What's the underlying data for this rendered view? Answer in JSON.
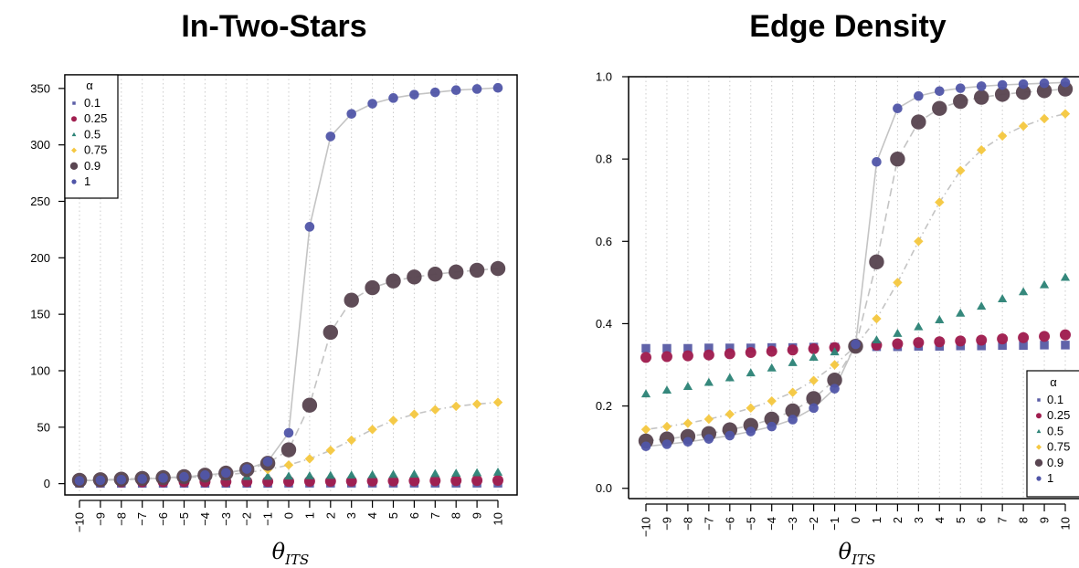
{
  "chart_data": [
    {
      "type": "scatter",
      "title": "In-Two-Stars",
      "xlabel": "θ_ITS",
      "xlabel_main": "θ",
      "xlabel_sub": "ITS",
      "ylabel": "",
      "x": [
        -10,
        -9,
        -8,
        -7,
        -6,
        -5,
        -4,
        -3,
        -2,
        -1,
        0,
        1,
        2,
        3,
        4,
        5,
        6,
        7,
        8,
        9,
        10
      ],
      "x_tick_labels": [
        "−10",
        "−9",
        "−8",
        "−7",
        "−6",
        "−5",
        "−4",
        "−3",
        "−2",
        "−1",
        "0",
        "1",
        "2",
        "3",
        "4",
        "5",
        "6",
        "7",
        "8",
        "9",
        "10"
      ],
      "ylim": [
        -10,
        362
      ],
      "y_ticks": [
        0,
        50,
        100,
        150,
        200,
        250,
        300,
        350
      ],
      "y_tick_labels": [
        "0",
        "50",
        "100",
        "150",
        "200",
        "250",
        "300",
        "350"
      ],
      "grid": "vertical dotted",
      "legend_position": "top-left",
      "legend_title": "α",
      "series": [
        {
          "name": "0.1",
          "color": "#5b5ea6",
          "marker": "square",
          "line": "",
          "values": [
            0.3,
            0.3,
            0.3,
            0.3,
            0.3,
            0.3,
            0.3,
            0.3,
            0.3,
            0.3,
            0.4,
            0.4,
            0.4,
            0.4,
            0.4,
            0.4,
            0.4,
            0.4,
            0.4,
            0.4,
            0.4
          ]
        },
        {
          "name": "0.25",
          "color": "#a01e4f",
          "marker": "circle",
          "line": "",
          "values": [
            1.5,
            1.5,
            1.5,
            1.6,
            1.6,
            1.7,
            1.7,
            1.8,
            1.8,
            1.9,
            2.0,
            2.1,
            2.1,
            2.2,
            2.3,
            2.4,
            2.5,
            2.6,
            2.7,
            2.8,
            2.9
          ]
        },
        {
          "name": "0.5",
          "color": "#2e8478",
          "marker": "triangle",
          "line": "",
          "values": [
            4.5,
            4.7,
            4.9,
            5.1,
            5.3,
            5.5,
            5.7,
            5.9,
            6.1,
            6.3,
            6.5,
            6.8,
            7.1,
            7.4,
            7.7,
            8.0,
            8.3,
            8.7,
            9.1,
            9.5,
            10.0
          ]
        },
        {
          "name": "0.75",
          "color": "#f5c842",
          "marker": "diamond",
          "line": "dotdash",
          "values": [
            2.8,
            3.1,
            3.5,
            4.0,
            4.6,
            5.3,
            6.3,
            7.8,
            9.8,
            12.5,
            16.5,
            22.0,
            29.5,
            38.5,
            48.0,
            56.0,
            61.5,
            65.5,
            68.5,
            70.5,
            72.0
          ]
        },
        {
          "name": "0.9",
          "color": "#5a4652",
          "marker": "circle-large",
          "line": "dashed",
          "values": [
            3.0,
            3.5,
            4.0,
            4.6,
            5.3,
            6.2,
            7.5,
            9.3,
            12.5,
            18.0,
            30.0,
            69.5,
            134.0,
            162.5,
            173.5,
            179.5,
            183.0,
            185.5,
            187.5,
            189.0,
            190.5
          ]
        },
        {
          "name": "1",
          "color": "#5055a8",
          "marker": "circle-small",
          "line": "solid",
          "values": [
            2.5,
            3.0,
            3.5,
            4.2,
            5.0,
            6.0,
            7.5,
            9.5,
            13.0,
            19.5,
            45.0,
            227.5,
            307.5,
            327.5,
            336.5,
            341.5,
            344.5,
            346.5,
            348.5,
            349.5,
            350.5
          ]
        }
      ]
    },
    {
      "type": "scatter",
      "title": "Edge Density",
      "xlabel": "θ_ITS",
      "xlabel_main": "θ",
      "xlabel_sub": "ITS",
      "ylabel": "",
      "x": [
        -10,
        -9,
        -8,
        -7,
        -6,
        -5,
        -4,
        -3,
        -2,
        -1,
        0,
        1,
        2,
        3,
        4,
        5,
        6,
        7,
        8,
        9,
        10
      ],
      "x_tick_labels": [
        "−10",
        "−9",
        "−8",
        "−7",
        "−6",
        "−5",
        "−4",
        "−3",
        "−2",
        "−1",
        "0",
        "1",
        "2",
        "3",
        "4",
        "5",
        "6",
        "7",
        "8",
        "9",
        "10"
      ],
      "ylim": [
        -0.025,
        1.0
      ],
      "y_ticks": [
        0.0,
        0.2,
        0.4,
        0.6,
        0.8,
        1.0
      ],
      "y_tick_labels": [
        "0.0",
        "0.2",
        "0.4",
        "0.6",
        "0.8",
        "1.0"
      ],
      "grid": "vertical dotted",
      "legend_position": "bottom-right",
      "legend_title": "α",
      "series": [
        {
          "name": "0.1",
          "color": "#5b5ea6",
          "marker": "square",
          "line": "",
          "values": [
            0.34,
            0.34,
            0.34,
            0.341,
            0.341,
            0.341,
            0.342,
            0.342,
            0.343,
            0.343,
            0.344,
            0.344,
            0.344,
            0.345,
            0.345,
            0.346,
            0.346,
            0.347,
            0.347,
            0.348,
            0.348
          ]
        },
        {
          "name": "0.25",
          "color": "#a01e4f",
          "marker": "circle",
          "line": "",
          "values": [
            0.318,
            0.32,
            0.322,
            0.324,
            0.327,
            0.33,
            0.333,
            0.336,
            0.339,
            0.342,
            0.345,
            0.348,
            0.351,
            0.354,
            0.356,
            0.358,
            0.36,
            0.363,
            0.366,
            0.369,
            0.373
          ]
        },
        {
          "name": "0.5",
          "color": "#2e8478",
          "marker": "triangle",
          "line": "",
          "values": [
            0.229,
            0.238,
            0.247,
            0.257,
            0.268,
            0.28,
            0.292,
            0.305,
            0.318,
            0.331,
            0.345,
            0.36,
            0.376,
            0.392,
            0.409,
            0.425,
            0.442,
            0.46,
            0.477,
            0.494,
            0.512
          ]
        },
        {
          "name": "0.75",
          "color": "#f5c842",
          "marker": "diamond",
          "line": "dotdash",
          "values": [
            0.143,
            0.15,
            0.158,
            0.168,
            0.18,
            0.195,
            0.212,
            0.233,
            0.262,
            0.3,
            0.345,
            0.412,
            0.5,
            0.6,
            0.695,
            0.772,
            0.822,
            0.856,
            0.88,
            0.898,
            0.91
          ]
        },
        {
          "name": "0.9",
          "color": "#5a4652",
          "marker": "circle-large",
          "line": "dashed",
          "values": [
            0.115,
            0.12,
            0.126,
            0.133,
            0.142,
            0.153,
            0.168,
            0.188,
            0.218,
            0.263,
            0.345,
            0.55,
            0.8,
            0.89,
            0.923,
            0.94,
            0.95,
            0.957,
            0.962,
            0.966,
            0.97
          ]
        },
        {
          "name": "1",
          "color": "#5055a8",
          "marker": "circle-small",
          "line": "solid",
          "values": [
            0.102,
            0.107,
            0.113,
            0.12,
            0.128,
            0.138,
            0.15,
            0.167,
            0.195,
            0.242,
            0.35,
            0.793,
            0.923,
            0.953,
            0.965,
            0.972,
            0.977,
            0.98,
            0.982,
            0.984,
            0.986
          ]
        }
      ]
    }
  ]
}
